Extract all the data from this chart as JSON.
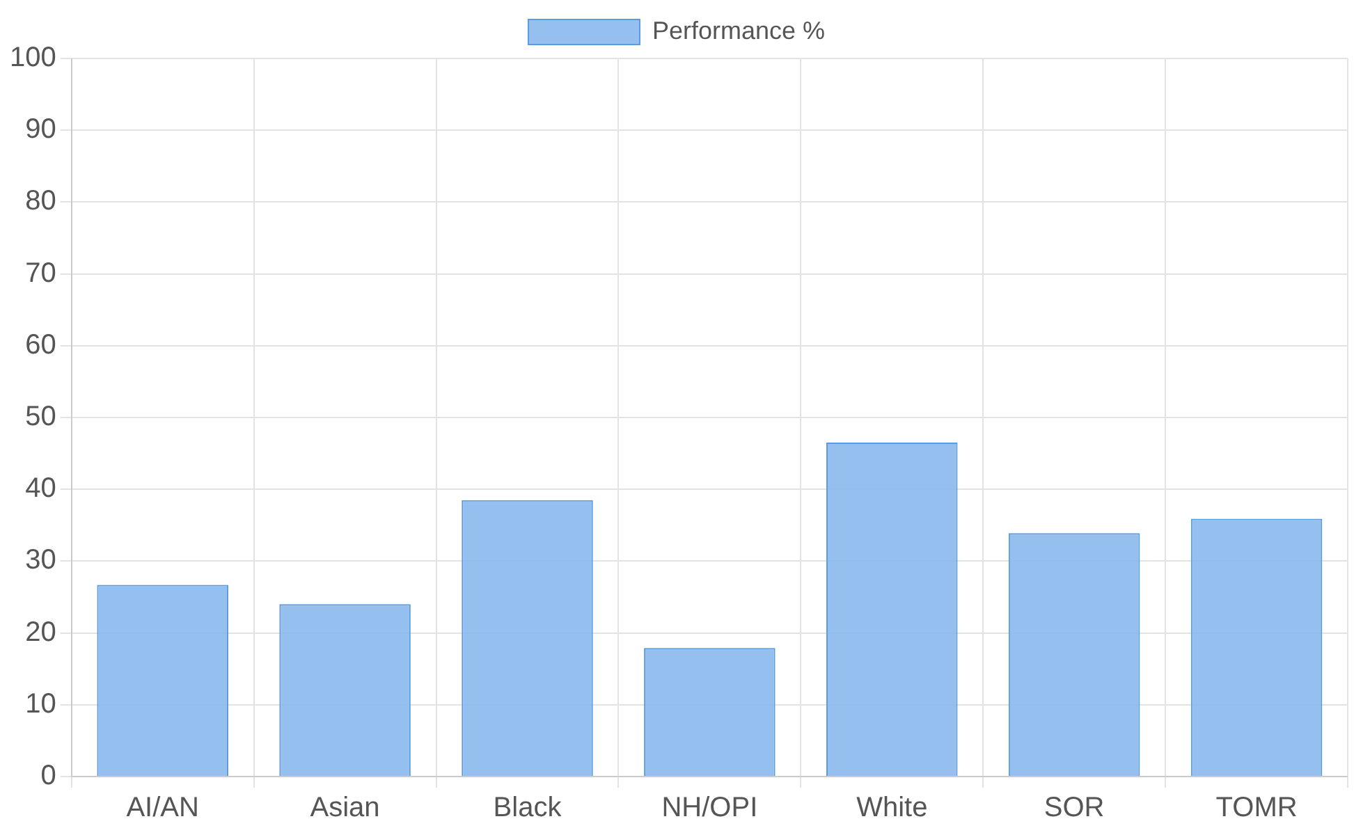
{
  "chart_data": {
    "type": "bar",
    "categories": [
      "AI/AN",
      "Asian",
      "Black",
      "NH/OPI",
      "White",
      "SOR",
      "TOMR"
    ],
    "series": [
      {
        "name": "Performance %",
        "color": "#8ab8ec",
        "values": [
          26.7,
          24.0,
          38.5,
          17.9,
          46.5,
          33.9,
          35.9
        ]
      }
    ],
    "ylim": [
      0,
      100
    ],
    "yticks": [
      0,
      10,
      20,
      30,
      40,
      50,
      60,
      70,
      80,
      90,
      100
    ],
    "grid": true,
    "legend": "top"
  }
}
